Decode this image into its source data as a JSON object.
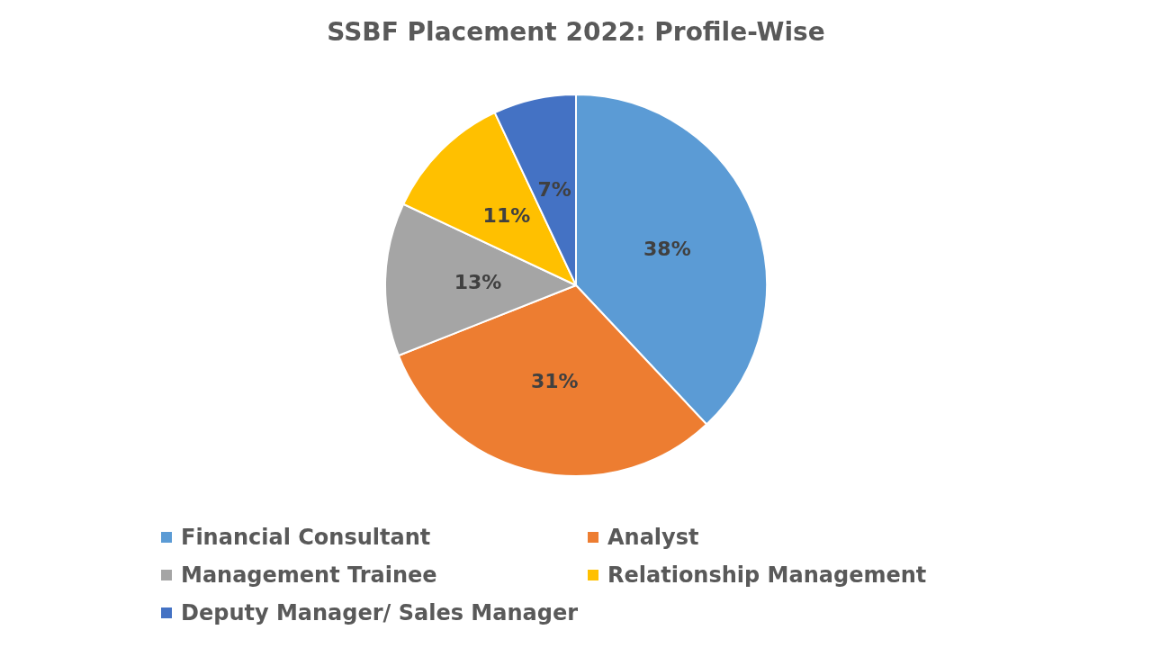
{
  "chart_data": {
    "type": "pie",
    "title": "SSBF Placement 2022: Profile-Wise",
    "categories": [
      "Financial Consultant",
      "Analyst",
      "Management Trainee",
      "Relationship Management",
      "Deputy Manager/ Sales Manager"
    ],
    "values": [
      38,
      31,
      13,
      11,
      7
    ],
    "value_labels": [
      "38%",
      "31%",
      "13%",
      "11%",
      "7%"
    ],
    "colors": [
      "#5b9bd5",
      "#ed7d31",
      "#a5a5a5",
      "#ffc000",
      "#4472c4"
    ],
    "legend": "bottom"
  }
}
